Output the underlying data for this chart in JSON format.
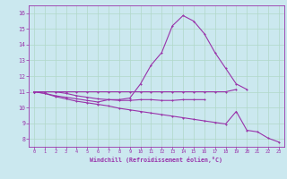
{
  "xlabel": "Windchill (Refroidissement éolien,°C)",
  "background_color": "#cbe8ef",
  "line_color": "#9933aa",
  "grid_color": "#b0d8c8",
  "xlim": [
    -0.5,
    23.5
  ],
  "ylim": [
    7.5,
    16.5
  ],
  "xticks": [
    0,
    1,
    2,
    3,
    4,
    5,
    6,
    7,
    8,
    9,
    10,
    11,
    12,
    13,
    14,
    15,
    16,
    17,
    18,
    19,
    20,
    21,
    22,
    23
  ],
  "yticks": [
    8,
    9,
    10,
    11,
    12,
    13,
    14,
    15,
    16
  ],
  "hours": [
    0,
    1,
    2,
    3,
    4,
    5,
    6,
    7,
    8,
    9,
    10,
    11,
    12,
    13,
    14,
    15,
    16,
    17,
    18,
    19,
    20,
    21,
    22,
    23
  ],
  "line_peak": [
    11.0,
    11.0,
    11.0,
    10.9,
    10.75,
    10.65,
    10.55,
    10.5,
    10.5,
    10.6,
    11.5,
    12.7,
    13.5,
    15.2,
    15.85,
    15.5,
    14.7,
    13.5,
    12.5,
    11.5,
    11.15,
    null,
    null,
    null
  ],
  "line_flat": [
    11.0,
    11.0,
    11.0,
    11.0,
    11.0,
    11.0,
    11.0,
    11.0,
    11.0,
    11.0,
    11.0,
    11.0,
    11.0,
    11.0,
    11.0,
    11.0,
    11.0,
    11.0,
    11.0,
    11.15,
    null,
    null,
    null,
    null
  ],
  "line_low": [
    11.0,
    10.9,
    10.75,
    10.65,
    10.55,
    10.45,
    10.35,
    10.5,
    10.45,
    10.45,
    10.5,
    10.5,
    10.45,
    10.45,
    10.5,
    10.5,
    10.5,
    null,
    null,
    null,
    null,
    null,
    null,
    null
  ],
  "line_decline": [
    11.0,
    10.9,
    10.7,
    10.55,
    10.4,
    10.3,
    10.2,
    10.1,
    9.95,
    9.85,
    9.75,
    9.65,
    9.55,
    9.45,
    9.35,
    9.25,
    9.15,
    9.05,
    8.95,
    9.75,
    8.55,
    8.45,
    8.05,
    7.8
  ]
}
